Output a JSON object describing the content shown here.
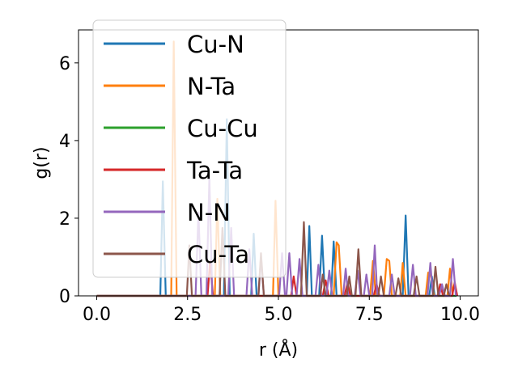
{
  "chart_data": {
    "type": "line",
    "title": "",
    "xlabel": "r (Å)",
    "ylabel": "g(r)",
    "xlim": [
      -0.5,
      10.5
    ],
    "ylim": [
      0,
      6.85
    ],
    "xticks": [
      "0.0",
      "2.5",
      "5.0",
      "7.5",
      "10.0"
    ],
    "yticks": [
      "0",
      "2",
      "4",
      "6"
    ],
    "grid": false,
    "legend_position": "top-left",
    "series": [
      {
        "name": "Cu-N",
        "color": "#1f77b4",
        "points": [
          [
            0,
            0
          ],
          [
            1.75,
            0
          ],
          [
            1.82,
            2.95
          ],
          [
            1.9,
            0
          ],
          [
            3.5,
            0
          ],
          [
            3.58,
            4.55
          ],
          [
            3.66,
            0
          ],
          [
            4.25,
            0
          ],
          [
            4.32,
            1.6
          ],
          [
            4.4,
            0
          ],
          [
            5.78,
            0
          ],
          [
            5.85,
            1.8
          ],
          [
            5.92,
            0
          ],
          [
            6.12,
            0
          ],
          [
            6.2,
            1.55
          ],
          [
            6.28,
            0
          ],
          [
            6.45,
            0
          ],
          [
            6.52,
            1.4
          ],
          [
            6.6,
            0
          ],
          [
            8.42,
            0
          ],
          [
            8.5,
            2.07
          ],
          [
            8.58,
            0
          ],
          [
            9.15,
            0
          ],
          [
            9.22,
            0.5
          ],
          [
            9.3,
            0
          ],
          [
            9.9,
            0
          ]
        ]
      },
      {
        "name": "N-Ta",
        "color": "#ff7f0e",
        "points": [
          [
            0,
            0
          ],
          [
            2.05,
            0
          ],
          [
            2.12,
            6.55
          ],
          [
            2.2,
            0
          ],
          [
            3.25,
            0
          ],
          [
            3.32,
            2.5
          ],
          [
            3.4,
            0
          ],
          [
            4.85,
            0
          ],
          [
            4.92,
            2.45
          ],
          [
            5.0,
            0
          ],
          [
            6.52,
            0
          ],
          [
            6.6,
            1.38
          ],
          [
            6.66,
            1.3
          ],
          [
            6.74,
            0
          ],
          [
            7.52,
            0
          ],
          [
            7.6,
            0.9
          ],
          [
            7.68,
            0
          ],
          [
            7.9,
            0
          ],
          [
            7.98,
            0.95
          ],
          [
            8.05,
            0.9
          ],
          [
            8.12,
            0
          ],
          [
            8.35,
            0
          ],
          [
            8.42,
            0.85
          ],
          [
            8.5,
            0
          ],
          [
            9.05,
            0
          ],
          [
            9.12,
            0.6
          ],
          [
            9.2,
            0.5
          ],
          [
            9.28,
            0
          ],
          [
            9.65,
            0
          ],
          [
            9.72,
            0.7
          ],
          [
            9.8,
            0
          ]
        ]
      },
      {
        "name": "Cu-Cu",
        "color": "#2ca02c",
        "points": [
          [
            0,
            0
          ],
          [
            9.9,
            0
          ]
        ]
      },
      {
        "name": "Ta-Ta",
        "color": "#d62728",
        "points": [
          [
            0,
            0
          ],
          [
            3.05,
            0
          ],
          [
            3.12,
            0.9
          ],
          [
            3.2,
            0
          ],
          [
            5.35,
            0
          ],
          [
            5.42,
            0.5
          ],
          [
            5.5,
            0
          ],
          [
            6.22,
            0
          ],
          [
            6.3,
            0.4
          ],
          [
            6.38,
            0
          ],
          [
            6.82,
            0
          ],
          [
            6.9,
            0.35
          ],
          [
            6.98,
            0
          ],
          [
            7.62,
            0
          ],
          [
            7.7,
            0.3
          ],
          [
            7.78,
            0
          ],
          [
            9.38,
            0
          ],
          [
            9.45,
            0.3
          ],
          [
            9.53,
            0
          ],
          [
            9.78,
            0
          ],
          [
            9.85,
            0.35
          ],
          [
            9.92,
            0
          ]
        ]
      },
      {
        "name": "N-N",
        "color": "#9467bd",
        "points": [
          [
            0,
            0
          ],
          [
            2.72,
            0
          ],
          [
            2.8,
            2.15
          ],
          [
            2.88,
            0
          ],
          [
            3.02,
            0
          ],
          [
            3.1,
            3.05
          ],
          [
            3.18,
            0
          ],
          [
            3.62,
            0
          ],
          [
            3.7,
            1.75
          ],
          [
            3.78,
            0
          ],
          [
            4.12,
            0
          ],
          [
            4.2,
            1.2
          ],
          [
            4.28,
            0
          ],
          [
            4.45,
            0
          ],
          [
            4.52,
            1.0
          ],
          [
            4.6,
            0
          ],
          [
            5.02,
            0
          ],
          [
            5.1,
            1.1
          ],
          [
            5.18,
            0
          ],
          [
            5.22,
            0
          ],
          [
            5.3,
            1.1
          ],
          [
            5.38,
            0
          ],
          [
            5.5,
            0
          ],
          [
            5.58,
            0.95
          ],
          [
            5.66,
            0
          ],
          [
            6.02,
            0
          ],
          [
            6.1,
            0.8
          ],
          [
            6.18,
            0
          ],
          [
            6.32,
            0
          ],
          [
            6.4,
            0.65
          ],
          [
            6.48,
            0
          ],
          [
            6.78,
            0
          ],
          [
            6.85,
            0.7
          ],
          [
            6.92,
            0
          ],
          [
            7.1,
            0
          ],
          [
            7.18,
            0.65
          ],
          [
            7.26,
            0
          ],
          [
            7.35,
            0
          ],
          [
            7.42,
            0.55
          ],
          [
            7.5,
            0
          ],
          [
            7.58,
            0
          ],
          [
            7.65,
            1.3
          ],
          [
            7.72,
            0
          ],
          [
            8.05,
            0
          ],
          [
            8.12,
            0.55
          ],
          [
            8.2,
            0
          ],
          [
            8.62,
            0
          ],
          [
            8.7,
            0.8
          ],
          [
            8.78,
            0
          ],
          [
            9.1,
            0
          ],
          [
            9.18,
            0.85
          ],
          [
            9.25,
            0
          ],
          [
            9.42,
            0
          ],
          [
            9.5,
            0.3
          ],
          [
            9.58,
            0
          ],
          [
            9.72,
            0
          ],
          [
            9.8,
            0.95
          ],
          [
            9.88,
            0
          ]
        ]
      },
      {
        "name": "Cu-Ta",
        "color": "#8c564b",
        "points": [
          [
            0,
            0
          ],
          [
            2.48,
            0
          ],
          [
            2.55,
            1.3
          ],
          [
            2.62,
            0
          ],
          [
            3.38,
            0
          ],
          [
            3.46,
            1.75
          ],
          [
            3.54,
            0
          ],
          [
            4.45,
            0
          ],
          [
            4.52,
            1.1
          ],
          [
            4.6,
            0
          ],
          [
            5.62,
            0
          ],
          [
            5.7,
            1.9
          ],
          [
            5.78,
            0
          ],
          [
            6.15,
            0
          ],
          [
            6.22,
            0.55
          ],
          [
            6.3,
            0
          ],
          [
            6.88,
            0
          ],
          [
            6.95,
            0.5
          ],
          [
            7.02,
            0
          ],
          [
            7.12,
            0
          ],
          [
            7.2,
            1.2
          ],
          [
            7.28,
            0
          ],
          [
            7.75,
            0
          ],
          [
            7.82,
            0.5
          ],
          [
            7.9,
            0
          ],
          [
            8.22,
            0
          ],
          [
            8.3,
            0.45
          ],
          [
            8.38,
            0
          ],
          [
            8.72,
            0
          ],
          [
            8.8,
            0.5
          ],
          [
            8.88,
            0
          ],
          [
            9.25,
            0
          ],
          [
            9.32,
            0.75
          ],
          [
            9.4,
            0
          ],
          [
            9.55,
            0
          ],
          [
            9.62,
            0.3
          ],
          [
            9.7,
            0
          ]
        ]
      }
    ]
  }
}
